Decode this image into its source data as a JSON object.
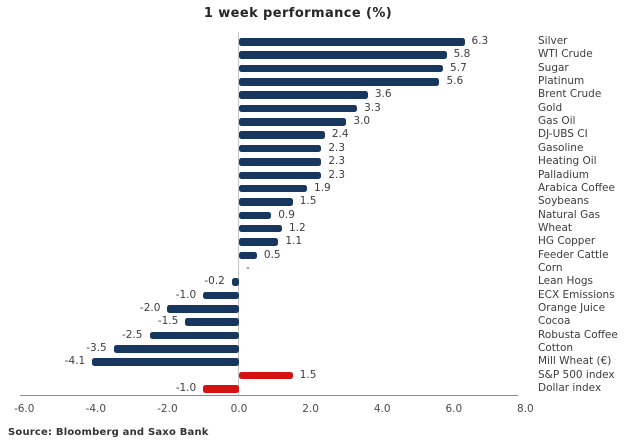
{
  "chart_data": {
    "type": "bar",
    "orientation": "horizontal",
    "title": "1 week performance (%)",
    "xlabel": "",
    "ylabel": "",
    "xlim": [
      -6.0,
      8.0
    ],
    "x_tick_labels": [
      "-6.0",
      "-4.0",
      "-2.0",
      "0.0",
      "2.0",
      "4.0",
      "6.0",
      "8.0"
    ],
    "grid": "zero-line-only",
    "legend": "none",
    "bars": [
      {
        "category": "Silver",
        "value": 6.3,
        "display": "6.3",
        "color": "navy"
      },
      {
        "category": "WTI Crude",
        "value": 5.8,
        "display": "5.8",
        "color": "navy"
      },
      {
        "category": "Sugar",
        "value": 5.7,
        "display": "5.7",
        "color": "navy"
      },
      {
        "category": "Platinum",
        "value": 5.6,
        "display": "5.6",
        "color": "navy"
      },
      {
        "category": "Brent Crude",
        "value": 3.6,
        "display": "3.6",
        "color": "navy"
      },
      {
        "category": "Gold",
        "value": 3.3,
        "display": "3.3",
        "color": "navy"
      },
      {
        "category": "Gas Oil",
        "value": 3.0,
        "display": "3.0",
        "color": "navy"
      },
      {
        "category": "DJ-UBS CI",
        "value": 2.4,
        "display": "2.4",
        "color": "navy"
      },
      {
        "category": "Gasoline",
        "value": 2.3,
        "display": "2.3",
        "color": "navy"
      },
      {
        "category": "Heating Oil",
        "value": 2.3,
        "display": "2.3",
        "color": "navy"
      },
      {
        "category": "Palladium",
        "value": 2.3,
        "display": "2.3",
        "color": "navy"
      },
      {
        "category": "Arabica Coffee",
        "value": 1.9,
        "display": "1.9",
        "color": "navy"
      },
      {
        "category": "Soybeans",
        "value": 1.5,
        "display": "1.5",
        "color": "navy"
      },
      {
        "category": "Natural Gas",
        "value": 0.9,
        "display": "0.9",
        "color": "navy"
      },
      {
        "category": "Wheat",
        "value": 1.2,
        "display": "1.2",
        "color": "navy"
      },
      {
        "category": "HG Copper",
        "value": 1.1,
        "display": "1.1",
        "color": "navy"
      },
      {
        "category": "Feeder Cattle",
        "value": 0.5,
        "display": "0.5",
        "color": "navy"
      },
      {
        "category": "Corn",
        "value": 0.0,
        "display": "-",
        "color": "navy"
      },
      {
        "category": "Lean Hogs",
        "value": -0.2,
        "display": "-0.2",
        "color": "navy"
      },
      {
        "category": "ECX Emissions",
        "value": -1.0,
        "display": "-1.0",
        "color": "navy"
      },
      {
        "category": "Orange Juice",
        "value": -2.0,
        "display": "-2.0",
        "color": "navy"
      },
      {
        "category": "Cocoa",
        "value": -1.5,
        "display": "-1.5",
        "color": "navy"
      },
      {
        "category": "Robusta Coffee",
        "value": -2.5,
        "display": "-2.5",
        "color": "navy"
      },
      {
        "category": "Cotton",
        "value": -3.5,
        "display": "-3.5",
        "color": "navy"
      },
      {
        "category": "Mill Wheat (€)",
        "value": -4.1,
        "display": "-4.1",
        "color": "navy"
      },
      {
        "category": "S&P 500 index",
        "value": 1.5,
        "display": "1.5",
        "color": "red"
      },
      {
        "category": "Dollar index",
        "value": -1.0,
        "display": "-1.0",
        "color": "red"
      }
    ],
    "colors": {
      "navy": "#17375E",
      "red": "#D51111",
      "zero_line": "#C4C4C4",
      "axis_line": "#8C8C8C",
      "label_text": "#3D3D3D"
    },
    "source": "Source: Bloomberg and Saxo Bank"
  }
}
